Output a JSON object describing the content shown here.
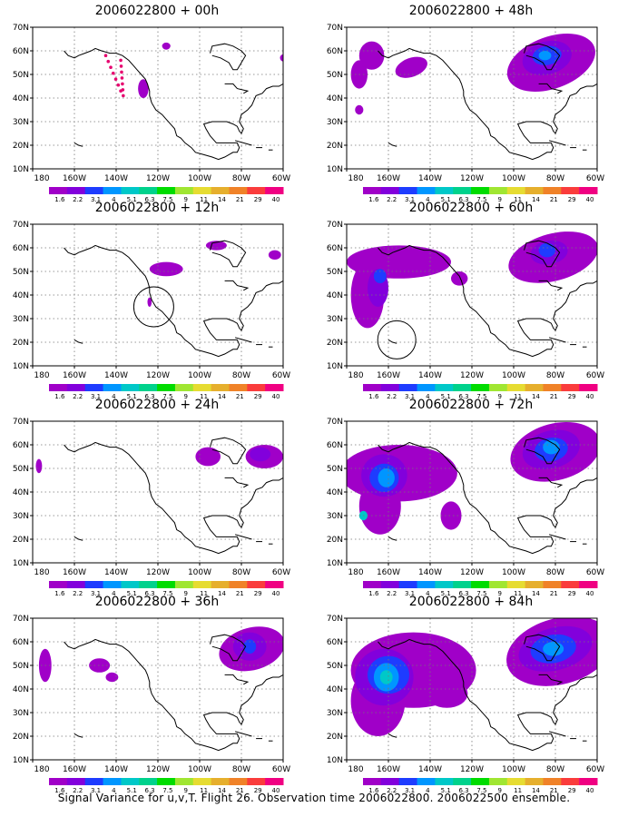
{
  "panels": [
    {
      "title": "2006022800 + 00h"
    },
    {
      "title": "2006022800 + 48h"
    },
    {
      "title": "2006022800 + 12h"
    },
    {
      "title": "2006022800 + 60h"
    },
    {
      "title": "2006022800 + 24h"
    },
    {
      "title": "2006022800 + 72h"
    },
    {
      "title": "2006022800 + 36h"
    },
    {
      "title": "2006022800 + 84h"
    }
  ],
  "axes": {
    "lat_ticks": [
      "70N",
      "60N",
      "50N",
      "40N",
      "30N",
      "20N",
      "10N"
    ],
    "lon_ticks": [
      "180",
      "160W",
      "140W",
      "120W",
      "100W",
      "80W",
      "60W"
    ]
  },
  "colorbar": {
    "labels": [
      "1.6",
      "2.2",
      "3.1",
      "4",
      "5.1",
      "6.3",
      "7.5",
      "9",
      "11",
      "14",
      "21",
      "29",
      "40"
    ],
    "colors": [
      "#a000c8",
      "#8200dc",
      "#1e3cff",
      "#0096ff",
      "#00c8c8",
      "#00d28c",
      "#00dc00",
      "#a0e632",
      "#e6dc32",
      "#e6af2d",
      "#f08228",
      "#fa3c3c",
      "#f00082"
    ]
  },
  "footer": "Signal Variance for u,v,T. Flight 26. Observation time 2006022800. 2006022500 ensemble."
}
